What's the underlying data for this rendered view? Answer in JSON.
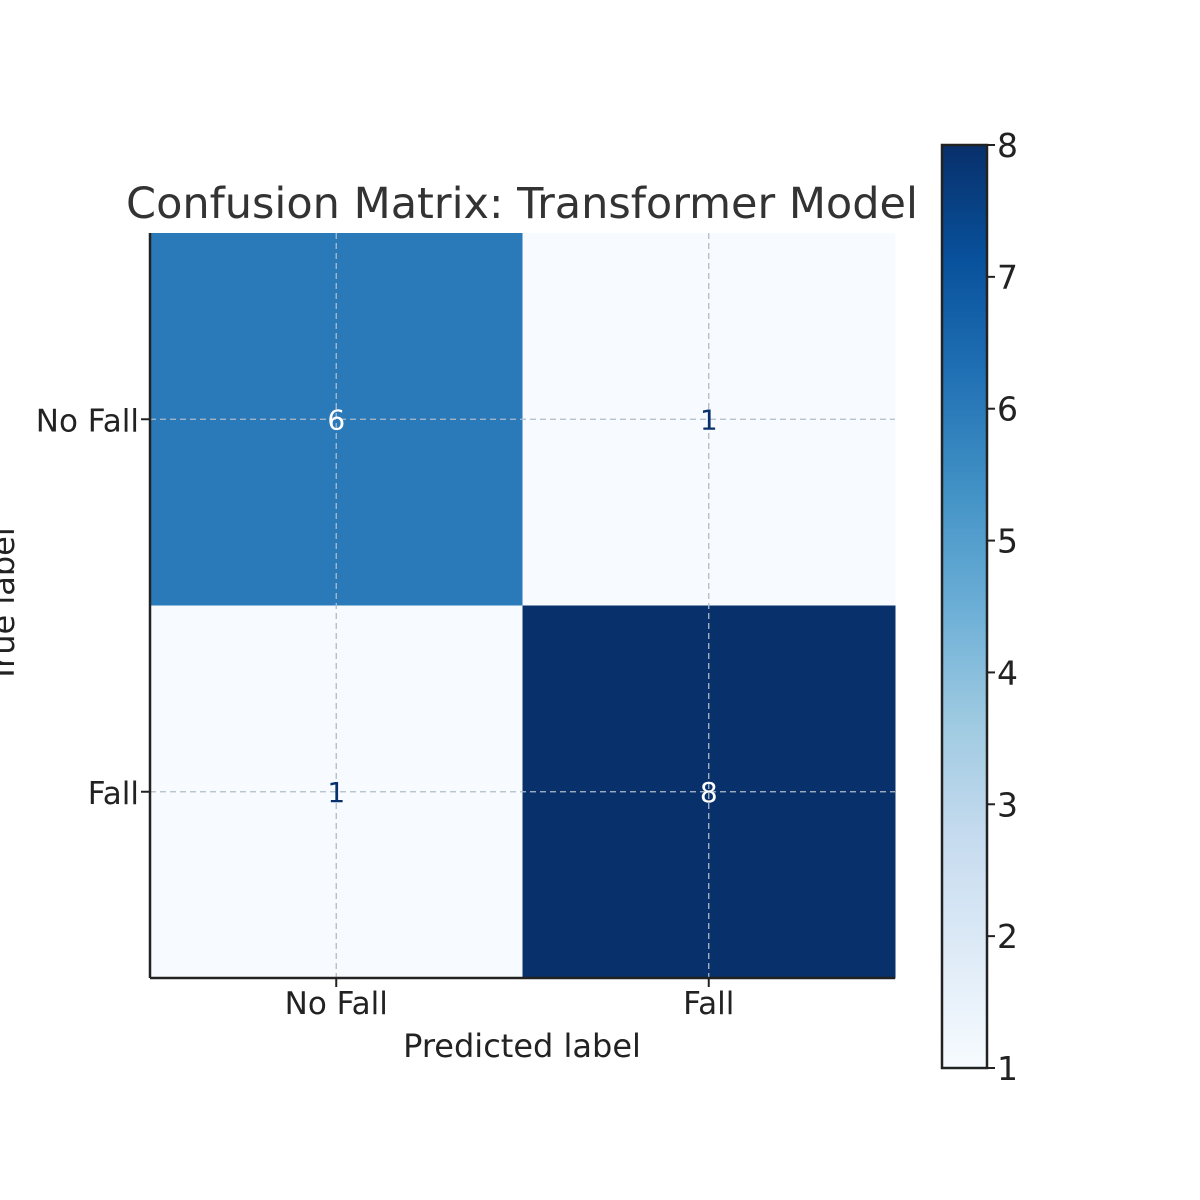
{
  "chart_data": {
    "type": "heatmap",
    "title": "Confusion Matrix: Transformer Model",
    "xlabel": "Predicted label",
    "ylabel": "True label",
    "x_categories": [
      "No Fall",
      "Fall"
    ],
    "y_categories": [
      "No Fall",
      "Fall"
    ],
    "values": [
      [
        6,
        1
      ],
      [
        1,
        8
      ]
    ],
    "colorbar": {
      "min": 1,
      "max": 8,
      "ticks": [
        "1",
        "2",
        "3",
        "4",
        "5",
        "6",
        "7",
        "8"
      ],
      "colormap": "Blues"
    },
    "grid": true,
    "colors": {
      "text_dark": "#08306b",
      "text_light": "#ffffff",
      "axis": "#222222",
      "grid": "#b0bcc8"
    }
  }
}
